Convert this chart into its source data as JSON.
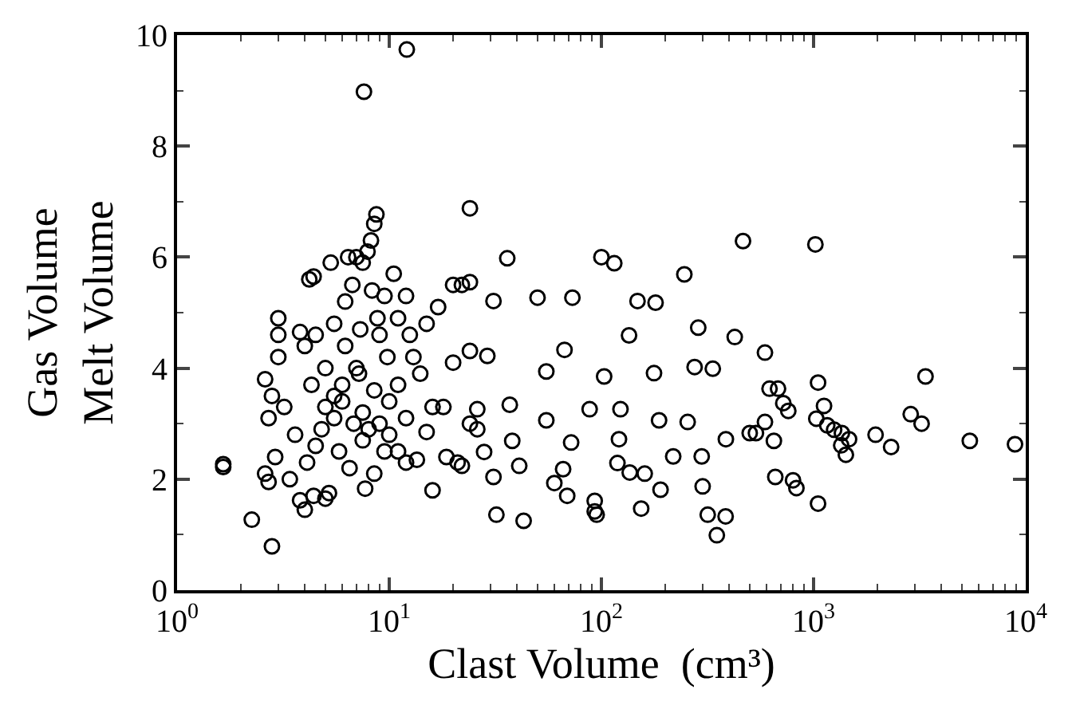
{
  "chart_data": {
    "type": "scatter",
    "xlabel": "Clast Volume  (cm³)",
    "ylabel": "Gas Volume\nMelt Volume",
    "log": "x",
    "marker": "circle",
    "xlim": [
      1,
      10000
    ],
    "ylim": [
      0,
      10
    ],
    "xticks": [
      {
        "value": 1,
        "label": "10$^{0}$"
      },
      {
        "value": 2,
        "label": null
      },
      {
        "value": 3,
        "label": null
      },
      {
        "value": 4,
        "label": null
      },
      {
        "value": 5,
        "label": null
      },
      {
        "value": 6,
        "label": null
      },
      {
        "value": 7,
        "label": null
      },
      {
        "value": 8,
        "label": null
      },
      {
        "value": 9,
        "label": null
      },
      {
        "value": 10,
        "label": "10$^{1}$"
      },
      {
        "value": 20,
        "label": null
      },
      {
        "value": 30,
        "label": null
      },
      {
        "value": 40,
        "label": null
      },
      {
        "value": 50,
        "label": null
      },
      {
        "value": 60,
        "label": null
      },
      {
        "value": 70,
        "label": null
      },
      {
        "value": 80,
        "label": null
      },
      {
        "value": 90,
        "label": null
      },
      {
        "value": 100,
        "label": "10$^{2}$"
      },
      {
        "value": 200,
        "label": null
      },
      {
        "value": 300,
        "label": null
      },
      {
        "value": 400,
        "label": null
      },
      {
        "value": 500,
        "label": null
      },
      {
        "value": 600,
        "label": null
      },
      {
        "value": 700,
        "label": null
      },
      {
        "value": 800,
        "label": null
      },
      {
        "value": 900,
        "label": null
      },
      {
        "value": 1000,
        "label": "10$^{3}$"
      },
      {
        "value": 2000,
        "label": null
      },
      {
        "value": 3000,
        "label": null
      },
      {
        "value": 4000,
        "label": null
      },
      {
        "value": 5000,
        "label": null
      },
      {
        "value": 6000,
        "label": null
      },
      {
        "value": 7000,
        "label": null
      },
      {
        "value": 8000,
        "label": null
      },
      {
        "value": 9000,
        "label": null
      },
      {
        "value": 10000,
        "label": "10$^{4}$"
      }
    ],
    "yticks": [
      0,
      {
        "value": 1,
        "label": null
      },
      2,
      {
        "value": 3,
        "label": null
      },
      4,
      {
        "value": 5,
        "label": null
      },
      6,
      {
        "value": 7,
        "label": null
      },
      8,
      {
        "value": 9,
        "label": null
      },
      10
    ],
    "series": [
      {
        "color": "#000000",
        "x": [
          1.65,
          1.65,
          2.25,
          2.8,
          7.6,
          12.1,
          8.7,
          3,
          3,
          3,
          2.6,
          2.8,
          3.2,
          2.7,
          3.6,
          2.9,
          2.6,
          2.7,
          3.4,
          4.4,
          4.0,
          3.8,
          5.0,
          5.2,
          7.7,
          4.1,
          4.5,
          4.8,
          5.5,
          6.0,
          4.3,
          5.0,
          4.0,
          4.5,
          3.8,
          4.2,
          4.4,
          5.3,
          6.4,
          7.0,
          7.5,
          7.9,
          8.2,
          8.5,
          6.7,
          6.2,
          7.3,
          8.3,
          9.5,
          10.5,
          12,
          11,
          12.5,
          9.8,
          7.0,
          6.0,
          5.5,
          7.5,
          8.5,
          9.0,
          10,
          11,
          12,
          13.5,
          15,
          16,
          14,
          13,
          15,
          17,
          20,
          22,
          20,
          18,
          24,
          26,
          21,
          16,
          8.5,
          9.5,
          6.5,
          5.8,
          7.5,
          6.8,
          5.0,
          7.2,
          9,
          10,
          11,
          12,
          8,
          6.2,
          5.5,
          8.8,
          24,
          36,
          100,
          115,
          246,
          465,
          24,
          31,
          50,
          73,
          148,
          180,
          286,
          425,
          590,
          135,
          67,
          24,
          29,
          55,
          103,
          177,
          275,
          335,
          26,
          37,
          55,
          88,
          123,
          187,
          255,
          386,
          500,
          650,
          72,
          121,
          38,
          28,
          119,
          66,
          218,
          297,
          800,
          60,
          69,
          31,
          41,
          160,
          190,
          300,
          136,
          93,
          32,
          43,
          93,
          154,
          317,
          385,
          350,
          95,
          22,
          18.6,
          1020,
          620,
          1050,
          1120,
          3370,
          720,
          760,
          1030,
          1160,
          1250,
          1360,
          1470,
          1350,
          1420,
          1960,
          2320,
          2870,
          3230,
          5450,
          8900,
          660,
          830,
          1050,
          590,
          535,
          680
        ],
        "values": [
          2.27,
          2.22,
          1.27,
          0.79,
          8.98,
          9.74,
          6.77,
          4.9,
          4.6,
          4.2,
          3.8,
          3.5,
          3.3,
          3.1,
          2.8,
          2.4,
          2.1,
          1.95,
          2.0,
          1.7,
          1.45,
          1.62,
          1.65,
          1.75,
          1.83,
          2.3,
          2.6,
          2.9,
          3.1,
          3.4,
          3.7,
          4.0,
          4.4,
          4.6,
          4.65,
          5.6,
          5.65,
          5.9,
          6.0,
          6.0,
          5.9,
          6.1,
          6.3,
          6.6,
          5.5,
          5.2,
          4.7,
          5.4,
          5.3,
          5.7,
          5.3,
          4.9,
          4.6,
          4.2,
          4.0,
          3.7,
          3.5,
          3.2,
          3.6,
          3.0,
          2.8,
          2.5,
          2.3,
          2.35,
          2.85,
          3.3,
          3.9,
          4.2,
          4.8,
          5.1,
          5.5,
          5.5,
          4.1,
          3.3,
          3.0,
          2.9,
          2.3,
          1.8,
          2.1,
          2.5,
          2.2,
          2.5,
          2.7,
          3.0,
          3.3,
          3.9,
          4.6,
          3.4,
          3.7,
          3.1,
          2.9,
          4.4,
          4.8,
          4.9,
          6.88,
          5.98,
          6.0,
          5.89,
          5.69,
          6.29,
          5.55,
          5.21,
          5.27,
          5.27,
          5.21,
          5.18,
          4.73,
          4.56,
          4.28,
          4.59,
          4.33,
          4.31,
          4.22,
          3.94,
          3.85,
          3.91,
          4.02,
          3.99,
          3.26,
          3.34,
          3.06,
          3.26,
          3.26,
          3.06,
          3.03,
          2.72,
          2.83,
          2.69,
          2.66,
          2.72,
          2.69,
          2.49,
          2.29,
          2.18,
          2.41,
          2.41,
          1.98,
          1.93,
          1.7,
          2.04,
          2.24,
          2.1,
          1.81,
          1.87,
          2.12,
          1.61,
          1.36,
          1.25,
          1.42,
          1.47,
          1.36,
          1.33,
          0.99,
          1.36,
          2.24,
          2.4,
          6.23,
          3.63,
          3.74,
          3.32,
          3.85,
          3.37,
          3.23,
          3.09,
          2.97,
          2.89,
          2.83,
          2.72,
          2.61,
          2.44,
          2.8,
          2.58,
          3.17,
          3.0,
          2.69,
          2.63,
          2.04,
          1.84,
          1.56,
          3.03,
          2.83,
          3.63
        ]
      }
    ]
  }
}
